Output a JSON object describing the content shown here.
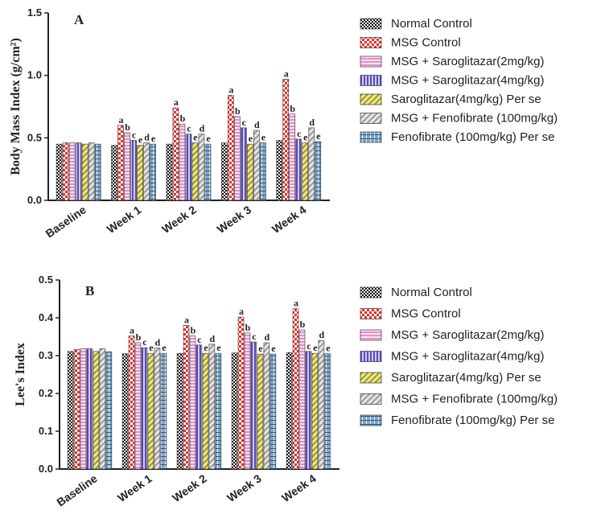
{
  "chart_data": [
    {
      "type": "bar",
      "panel": "A",
      "ylabel": "Body Mass Index (g/cm²)",
      "ylim": [
        0,
        1.5
      ],
      "yticks": [
        "0.0",
        "0.5",
        "1.0",
        "1.5"
      ],
      "categories": [
        "Baseline",
        "Week 1",
        "Week 2",
        "Week 3",
        "Week 4"
      ],
      "series": [
        {
          "name": "Normal Control",
          "values": [
            0.45,
            0.44,
            0.45,
            0.46,
            0.48
          ],
          "labels": [
            "",
            "",
            "",
            "",
            ""
          ]
        },
        {
          "name": "MSG Control",
          "values": [
            0.46,
            0.6,
            0.74,
            0.84,
            0.97
          ],
          "labels": [
            "",
            "a",
            "a",
            "a",
            "a"
          ]
        },
        {
          "name": "MSG + Saroglitazar(2mg/kg)",
          "values": [
            0.46,
            0.54,
            0.61,
            0.67,
            0.69
          ],
          "labels": [
            "",
            "b",
            "b",
            "b",
            "b"
          ]
        },
        {
          "name": "MSG + Saroglitazar(4mg/kg)",
          "values": [
            0.46,
            0.48,
            0.53,
            0.58,
            0.49
          ],
          "labels": [
            "",
            "c",
            "c",
            "c",
            "c"
          ]
        },
        {
          "name": "Saroglitazar(4mg/kg) Per se",
          "values": [
            0.45,
            0.44,
            0.46,
            0.45,
            0.46
          ],
          "labels": [
            "",
            "e",
            "e",
            "e",
            "e"
          ]
        },
        {
          "name": "MSG + Fenofibrate (100mg/kg)",
          "values": [
            0.46,
            0.46,
            0.53,
            0.56,
            0.58
          ],
          "labels": [
            "",
            "d",
            "d",
            "d",
            "d"
          ]
        },
        {
          "name": "Fenofibrate (100mg/kg) Per se",
          "values": [
            0.45,
            0.45,
            0.45,
            0.46,
            0.47
          ],
          "labels": [
            "",
            "e",
            "e",
            "e",
            "e"
          ]
        }
      ]
    },
    {
      "type": "bar",
      "panel": "B",
      "ylabel": "Lee's Index",
      "ylim": [
        0,
        0.5
      ],
      "yticks": [
        "0.0",
        "0.1",
        "0.2",
        "0.3",
        "0.4",
        "0.5"
      ],
      "categories": [
        "Baseline",
        "Week 1",
        "Week 2",
        "Week 3",
        "Week 4"
      ],
      "series": [
        {
          "name": "Normal Control",
          "values": [
            0.311,
            0.305,
            0.306,
            0.307,
            0.308
          ],
          "labels": [
            "",
            "",
            "",
            "",
            ""
          ]
        },
        {
          "name": "MSG Control",
          "values": [
            0.316,
            0.352,
            0.38,
            0.402,
            0.424
          ],
          "labels": [
            "",
            "a",
            "a",
            "a",
            "a"
          ]
        },
        {
          "name": "MSG + Saroglitazar(2mg/kg)",
          "values": [
            0.318,
            0.334,
            0.352,
            0.36,
            0.368
          ],
          "labels": [
            "",
            "b",
            "b",
            "b",
            "b"
          ]
        },
        {
          "name": "MSG + Saroglitazar(4mg/kg)",
          "values": [
            0.318,
            0.321,
            0.328,
            0.336,
            0.311
          ],
          "labels": [
            "",
            "c",
            "c",
            "c",
            "c"
          ]
        },
        {
          "name": "Saroglitazar(4mg/kg) Per se",
          "values": [
            0.311,
            0.306,
            0.306,
            0.304,
            0.306
          ],
          "labels": [
            "",
            "e",
            "e",
            "e",
            "e"
          ]
        },
        {
          "name": "MSG + Fenofibrate (100mg/kg)",
          "values": [
            0.318,
            0.32,
            0.33,
            0.334,
            0.34
          ],
          "labels": [
            "",
            "d",
            "d",
            "d",
            "d"
          ]
        },
        {
          "name": "Fenofibrate (100mg/kg) Per se",
          "values": [
            0.31,
            0.306,
            0.306,
            0.304,
            0.305
          ],
          "labels": [
            "",
            "e",
            "e",
            "e",
            "e"
          ]
        }
      ]
    }
  ],
  "legend_styles": [
    {
      "fill": "#1a1a1a",
      "pattern": "check-dark",
      "color_hex": "#1a1a1a"
    },
    {
      "fill": "#e8302b",
      "pattern": "check-red",
      "color_hex": "#e8302b"
    },
    {
      "fill": "#f2a9d6",
      "pattern": "hlines-pink",
      "color_hex": "#e58fc9"
    },
    {
      "fill": "#6a5acd",
      "pattern": "vlines-purple",
      "color_hex": "#5b4bbf"
    },
    {
      "fill": "#d9d23a",
      "pattern": "diag-yellow",
      "color_hex": "#c9c233"
    },
    {
      "fill": "#bdbdbd",
      "pattern": "diag-gray",
      "color_hex": "#a8a8a8"
    },
    {
      "fill": "#4f7fa8",
      "pattern": "grid-blue",
      "color_hex": "#4f7fa8"
    }
  ]
}
